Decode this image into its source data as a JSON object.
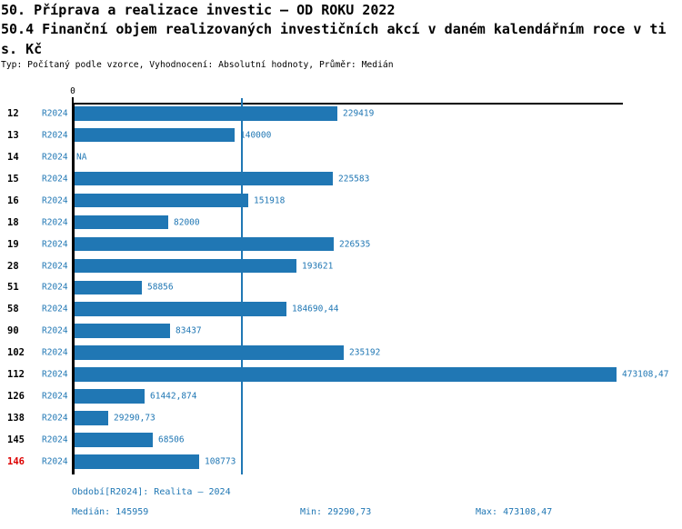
{
  "colors": {
    "accent_blue": "#2077b4",
    "highlight_red": "#dd0000",
    "axis_black": "#000000"
  },
  "header": {
    "title_line1": "50. Příprava a realizace investic – OD ROKU 2022",
    "title_line2": "50.4 Finanční objem realizovaných investičních akcí v daném kalendářním roce v ti",
    "title_line3": "s. Kč",
    "meta_line": "Typ: Počítaný podle vzorce, Vyhodnocení: Absolutní hodnoty, Průměr: Medián"
  },
  "chart_data": {
    "type": "bar",
    "orientation": "horizontal",
    "title": "50.4 Finanční objem realizovaných investičních akcí v daném kalendářním roce v tis. Kč",
    "xlabel": "",
    "ylabel": "",
    "xlim": [
      0,
      473108.47
    ],
    "axis_zero_label": "0",
    "grid": false,
    "median_line_value": 145959,
    "series_name": "R2024",
    "categories": [
      "12",
      "13",
      "14",
      "15",
      "16",
      "18",
      "19",
      "28",
      "51",
      "58",
      "90",
      "102",
      "112",
      "126",
      "138",
      "145",
      "146"
    ],
    "values": [
      229419,
      140000,
      null,
      225583,
      151918,
      82000,
      226535,
      193621,
      58856,
      184690.44,
      83437,
      235192,
      473108.47,
      61442.874,
      29290.73,
      68506,
      108773
    ],
    "rows": [
      {
        "id": "12",
        "series": "R2024",
        "value": 229419,
        "value_label": "229419",
        "highlight": false
      },
      {
        "id": "13",
        "series": "R2024",
        "value": 140000,
        "value_label": "140000",
        "highlight": false
      },
      {
        "id": "14",
        "series": "R2024",
        "value": null,
        "value_label": "NA",
        "highlight": false
      },
      {
        "id": "15",
        "series": "R2024",
        "value": 225583,
        "value_label": "225583",
        "highlight": false
      },
      {
        "id": "16",
        "series": "R2024",
        "value": 151918,
        "value_label": "151918",
        "highlight": false
      },
      {
        "id": "18",
        "series": "R2024",
        "value": 82000,
        "value_label": "82000",
        "highlight": false
      },
      {
        "id": "19",
        "series": "R2024",
        "value": 226535,
        "value_label": "226535",
        "highlight": false
      },
      {
        "id": "28",
        "series": "R2024",
        "value": 193621,
        "value_label": "193621",
        "highlight": false
      },
      {
        "id": "51",
        "series": "R2024",
        "value": 58856,
        "value_label": "58856",
        "highlight": false
      },
      {
        "id": "58",
        "series": "R2024",
        "value": 184690.44,
        "value_label": "184690,44",
        "highlight": false
      },
      {
        "id": "90",
        "series": "R2024",
        "value": 83437,
        "value_label": "83437",
        "highlight": false
      },
      {
        "id": "102",
        "series": "R2024",
        "value": 235192,
        "value_label": "235192",
        "highlight": false
      },
      {
        "id": "112",
        "series": "R2024",
        "value": 473108.47,
        "value_label": "473108,47",
        "highlight": false
      },
      {
        "id": "126",
        "series": "R2024",
        "value": 61442.874,
        "value_label": "61442,874",
        "highlight": false
      },
      {
        "id": "138",
        "series": "R2024",
        "value": 29290.73,
        "value_label": "29290,73",
        "highlight": false
      },
      {
        "id": "145",
        "series": "R2024",
        "value": 68506,
        "value_label": "68506",
        "highlight": false
      },
      {
        "id": "146",
        "series": "R2024",
        "value": 108773,
        "value_label": "108773",
        "highlight": true
      }
    ]
  },
  "footer": {
    "period_label": "Období[R2024]: Realita – 2024",
    "median_label": "Medián: 145959",
    "min_label": "Min: 29290,73",
    "max_label": "Max: 473108,47"
  }
}
